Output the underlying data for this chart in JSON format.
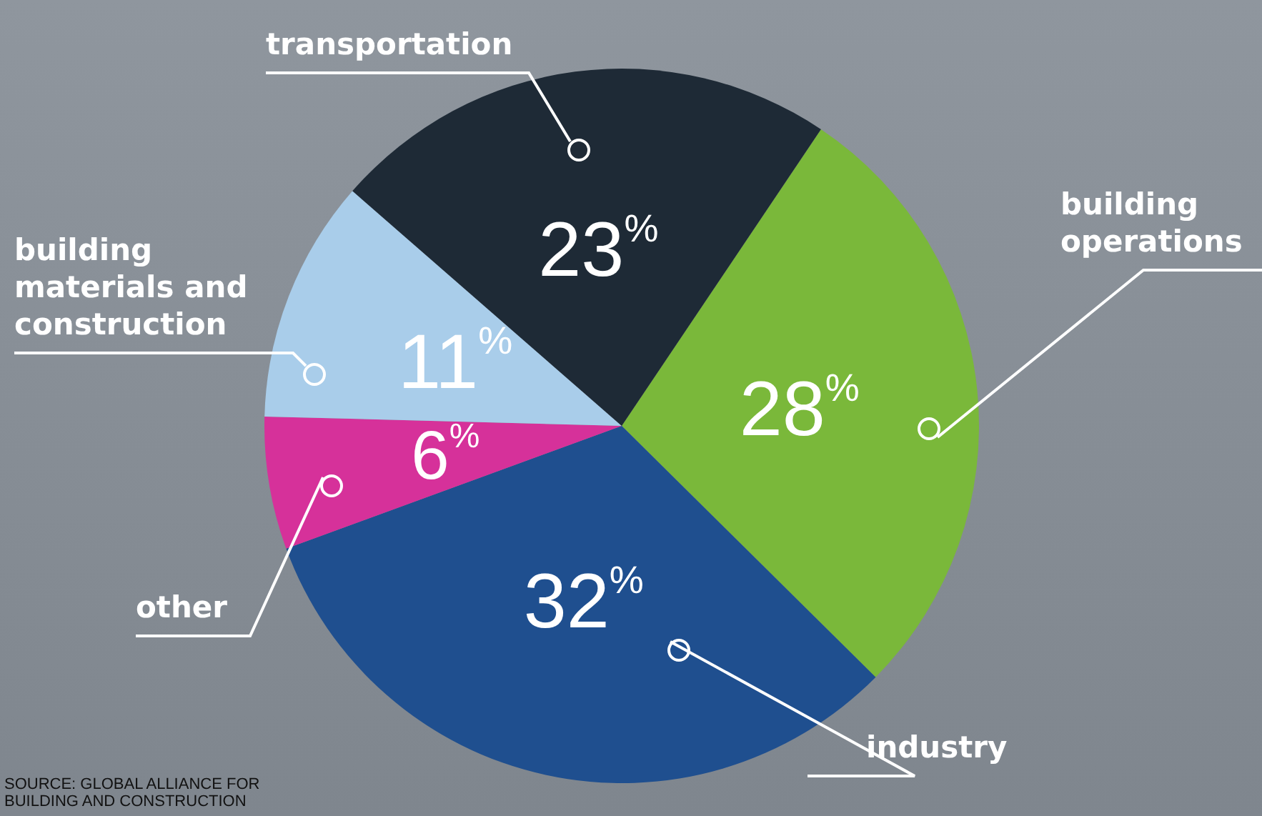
{
  "chart_data": {
    "type": "pie",
    "categories": [
      "building operations",
      "industry",
      "other",
      "building materials and construction",
      "transportation"
    ],
    "values": [
      28,
      32,
      6,
      11,
      23
    ],
    "colors": [
      "#7ab83a",
      "#1f4f8f",
      "#d6319a",
      "#a9cdea",
      "#1e2a36"
    ],
    "value_labels": [
      "28$^{%}$",
      "32$^{%}$",
      "6$^{%}$",
      "11$^{%}$",
      "23$^{%}$"
    ],
    "annotations": [
      "SOURCE: GLOBAL ALLIANCE FOR BUILDING AND CONSTRUCTION"
    ]
  }
}
